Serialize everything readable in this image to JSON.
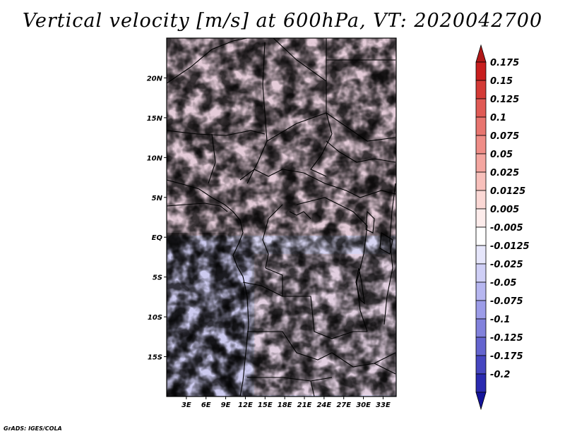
{
  "title": "Vertical velocity [m/s] at 600hPa, VT: 2020042700",
  "credit": "GrADS: IGES/COLA",
  "map": {
    "lon_range_deg": [
      0,
      35
    ],
    "lat_range_deg": [
      -20,
      25
    ],
    "lat_labels": [
      {
        "value": 20,
        "text": "20N"
      },
      {
        "value": 15,
        "text": "15N"
      },
      {
        "value": 10,
        "text": "10N"
      },
      {
        "value": 5,
        "text": "5N"
      },
      {
        "value": 0,
        "text": "EQ"
      },
      {
        "value": -5,
        "text": "5S"
      },
      {
        "value": -10,
        "text": "10S"
      },
      {
        "value": -15,
        "text": "15S"
      }
    ],
    "lon_labels": [
      {
        "value": 3,
        "text": "3E"
      },
      {
        "value": 6,
        "text": "6E"
      },
      {
        "value": 9,
        "text": "9E"
      },
      {
        "value": 12,
        "text": "12E"
      },
      {
        "value": 15,
        "text": "15E"
      },
      {
        "value": 18,
        "text": "18E"
      },
      {
        "value": 21,
        "text": "21E"
      },
      {
        "value": 24,
        "text": "24E"
      },
      {
        "value": 27,
        "text": "27E"
      },
      {
        "value": 30,
        "text": "30E"
      },
      {
        "value": 33,
        "text": "33E"
      }
    ]
  },
  "colorbar": {
    "levels": [
      {
        "label": "0.175",
        "color": "#c81e1e"
      },
      {
        "label": "0.15",
        "color": "#d43a36"
      },
      {
        "label": "0.125",
        "color": "#e05a55"
      },
      {
        "label": "0.1",
        "color": "#e8756f"
      },
      {
        "label": "0.075",
        "color": "#ef8d87"
      },
      {
        "label": "0.05",
        "color": "#f4a6a0"
      },
      {
        "label": "0.025",
        "color": "#f8c0bb"
      },
      {
        "label": "0.0125",
        "color": "#fbd8d5"
      },
      {
        "label": "0.005",
        "color": "#fdeceb"
      },
      {
        "label": "-0.005",
        "color": "#ffffff"
      },
      {
        "label": "-0.0125",
        "color": "#e6e6fb"
      },
      {
        "label": "-0.025",
        "color": "#cfcff6"
      },
      {
        "label": "-0.05",
        "color": "#b6b6f0"
      },
      {
        "label": "-0.075",
        "color": "#9c9ce8"
      },
      {
        "label": "-0.1",
        "color": "#8181dc"
      },
      {
        "label": "-0.125",
        "color": "#6464cf"
      },
      {
        "label": "-0.175",
        "color": "#4646c0"
      },
      {
        "label": "-0.2",
        "color": "#2a2ab0"
      }
    ],
    "top_cap_color": "#b01818",
    "bottom_cap_color": "#14149a"
  }
}
